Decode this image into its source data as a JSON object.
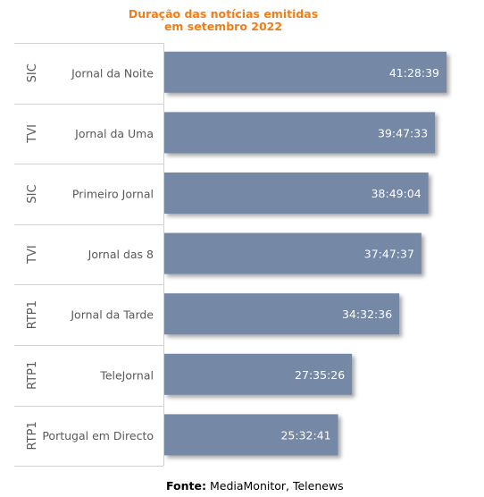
{
  "chart_data": {
    "type": "bar",
    "orientation": "horizontal",
    "title_line1": "Duração das notícias emitidas",
    "title_line2": "em setembro 2022",
    "bar_color": "#7488a6",
    "title_color": "#f07d18",
    "rows": [
      {
        "channel": "SIC",
        "program": "Jornal da Noite",
        "label": "41:28:39",
        "seconds": 149319
      },
      {
        "channel": "TVI",
        "program": "Jornal da Uma",
        "label": "39:47:33",
        "seconds": 143253
      },
      {
        "channel": "SIC",
        "program": "Primeiro Jornal",
        "label": "38:49:04",
        "seconds": 139744
      },
      {
        "channel": "TVI",
        "program": "Jornal das 8",
        "label": "37:47:37",
        "seconds": 136057
      },
      {
        "channel": "RTP1",
        "program": "Jornal da Tarde",
        "label": "34:32:36",
        "seconds": 124356
      },
      {
        "channel": "RTP1",
        "program": "TeleJornal",
        "label": "27:35:26",
        "seconds": 99326
      },
      {
        "channel": "RTP1",
        "program": "Portugal em Directo",
        "label": "25:32:41",
        "seconds": 91961
      }
    ]
  },
  "footer": {
    "label": "Fonte:",
    "text": "MediaMonitor, Telenews"
  }
}
